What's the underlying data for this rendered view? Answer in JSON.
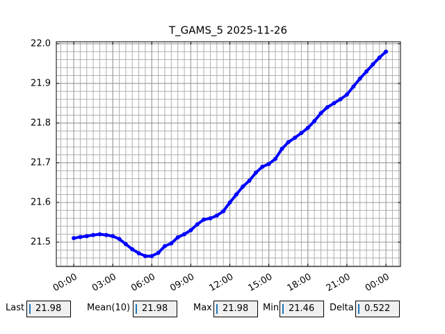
{
  "chart_data": {
    "type": "line",
    "title": "T_GAMS_5 2025-11-26",
    "x": [
      0,
      0.5,
      1,
      1.5,
      2,
      2.5,
      3,
      3.5,
      4,
      4.5,
      5,
      5.5,
      6,
      6.5,
      7,
      7.5,
      8,
      8.5,
      9,
      9.5,
      10,
      10.5,
      11,
      11.5,
      12,
      12.5,
      13,
      13.5,
      14,
      14.5,
      15,
      15.5,
      16,
      16.5,
      17,
      17.5,
      18,
      18.5,
      19,
      19.5,
      20,
      20.5,
      21,
      21.5,
      22,
      22.5,
      23,
      23.5,
      24
    ],
    "series": [
      {
        "color": "#0000ff",
        "values": [
          21.51,
          21.513,
          21.515,
          21.518,
          21.52,
          21.518,
          21.515,
          21.508,
          21.495,
          21.482,
          21.472,
          21.465,
          21.465,
          21.473,
          21.49,
          21.497,
          21.512,
          21.52,
          21.53,
          21.545,
          21.557,
          21.56,
          21.567,
          21.578,
          21.6,
          21.62,
          21.64,
          21.655,
          21.675,
          21.69,
          21.697,
          21.71,
          21.735,
          21.752,
          21.763,
          21.775,
          21.788,
          21.805,
          21.825,
          21.84,
          21.85,
          21.86,
          21.872,
          21.892,
          21.912,
          21.93,
          21.948,
          21.965,
          21.98
        ]
      }
    ],
    "xlim": [
      -1.34,
      25.12
    ],
    "xticks": [
      {
        "value": 0,
        "label": "00:00"
      },
      {
        "value": 3,
        "label": "03:00"
      },
      {
        "value": 6,
        "label": "06:00"
      },
      {
        "value": 9,
        "label": "09:00"
      },
      {
        "value": 12,
        "label": "12:00"
      },
      {
        "value": 15,
        "label": "15:00"
      },
      {
        "value": 18,
        "label": "18:00"
      },
      {
        "value": 21,
        "label": "21:00"
      },
      {
        "value": 24,
        "label": "00:00"
      }
    ],
    "ylim": [
      21.4386,
      22.005
    ],
    "yticks": [
      21.5,
      21.6,
      21.7,
      21.8,
      21.9,
      {
        "value": 22,
        "label": "22.0"
      }
    ],
    "grid": true,
    "minor_grid": {
      "x_step": 0.5,
      "y_step": 0.02
    }
  },
  "stats": [
    {
      "label": "Last",
      "value": "21.98"
    },
    {
      "label": "Mean(10)",
      "value": "21.98"
    },
    {
      "label": "Max",
      "value": "21.98"
    },
    {
      "label": "Min",
      "value": "21.46"
    },
    {
      "label": "Delta",
      "value": "0.522"
    }
  ]
}
